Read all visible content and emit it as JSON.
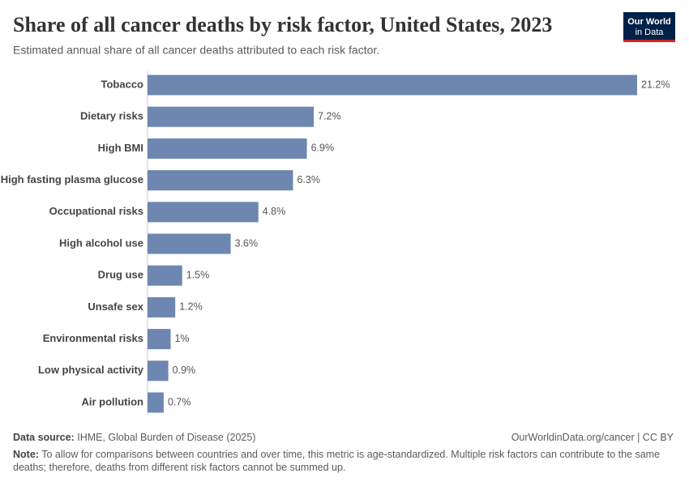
{
  "chart_data": {
    "type": "bar",
    "orientation": "horizontal",
    "title": "Share of all cancer deaths by risk factor, United States, 2023",
    "subtitle": "Estimated annual share of all cancer deaths attributed to each risk factor.",
    "categories": [
      "Tobacco",
      "Dietary risks",
      "High BMI",
      "High fasting plasma glucose",
      "Occupational risks",
      "High alcohol use",
      "Drug use",
      "Unsafe sex",
      "Environmental risks",
      "Low physical activity",
      "Air pollution"
    ],
    "values": [
      21.2,
      7.2,
      6.9,
      6.3,
      4.8,
      3.6,
      1.5,
      1.2,
      1,
      0.9,
      0.7
    ],
    "value_labels": [
      "21.2%",
      "7.2%",
      "6.9%",
      "6.3%",
      "4.8%",
      "3.6%",
      "1.5%",
      "1.2%",
      "1%",
      "0.9%",
      "0.7%"
    ],
    "color": "#6d87b0"
  },
  "logo": {
    "line1": "Our World",
    "line2": "in Data"
  },
  "footer": {
    "source_label": "Data source:",
    "source": "IHME, Global Burden of Disease (2025)",
    "url": "OurWorldinData.org/cancer | CC BY",
    "note_label": "Note:",
    "note": "To allow for comparisons between countries and over time, this metric is age-standardized. Multiple risk factors can contribute to the same deaths; therefore, deaths from different risk factors cannot be summed up."
  }
}
